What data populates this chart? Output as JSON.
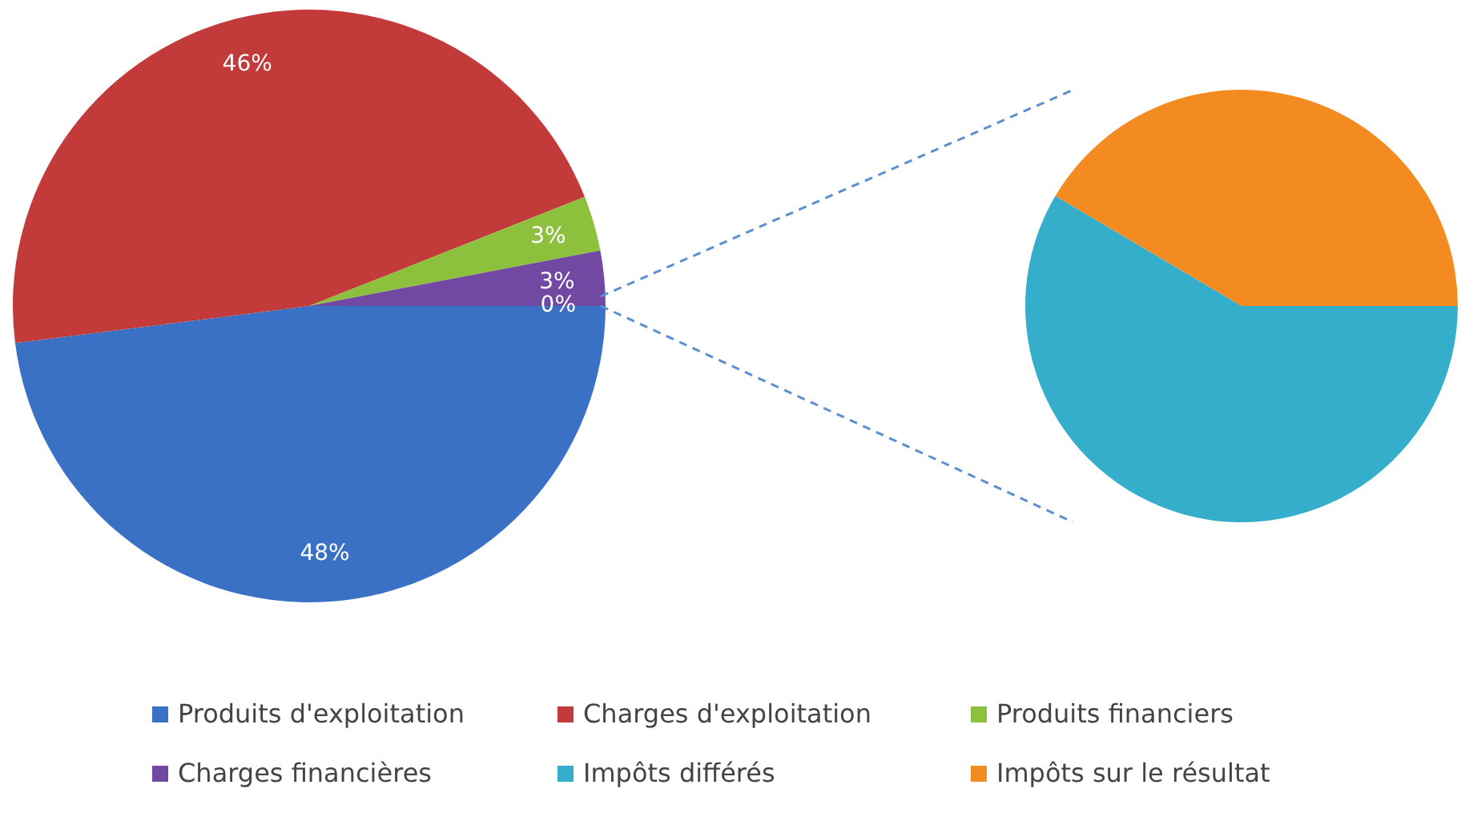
{
  "chart_data": [
    {
      "type": "pie",
      "categories": [
        "Produits d'exploitation",
        "Charges d'exploitation",
        "Produits financiers",
        "Charges financières",
        null
      ],
      "values": [
        48,
        46,
        3,
        3,
        0
      ],
      "value_labels": [
        "48%",
        "46%",
        "3%",
        "3%",
        "0%"
      ],
      "colors": [
        "#3a71c5",
        "#c23a3a",
        "#8dc03d",
        "#7149a2",
        "#35aecb"
      ],
      "legend": "bottom"
    },
    {
      "type": "pie",
      "categories": [
        "Impôts différés",
        "Impôts sur le résultat"
      ],
      "values": [
        58.5,
        41.5
      ],
      "colors": [
        "#35aecb",
        "#f38b20"
      ],
      "legend": "bottom"
    }
  ]
}
